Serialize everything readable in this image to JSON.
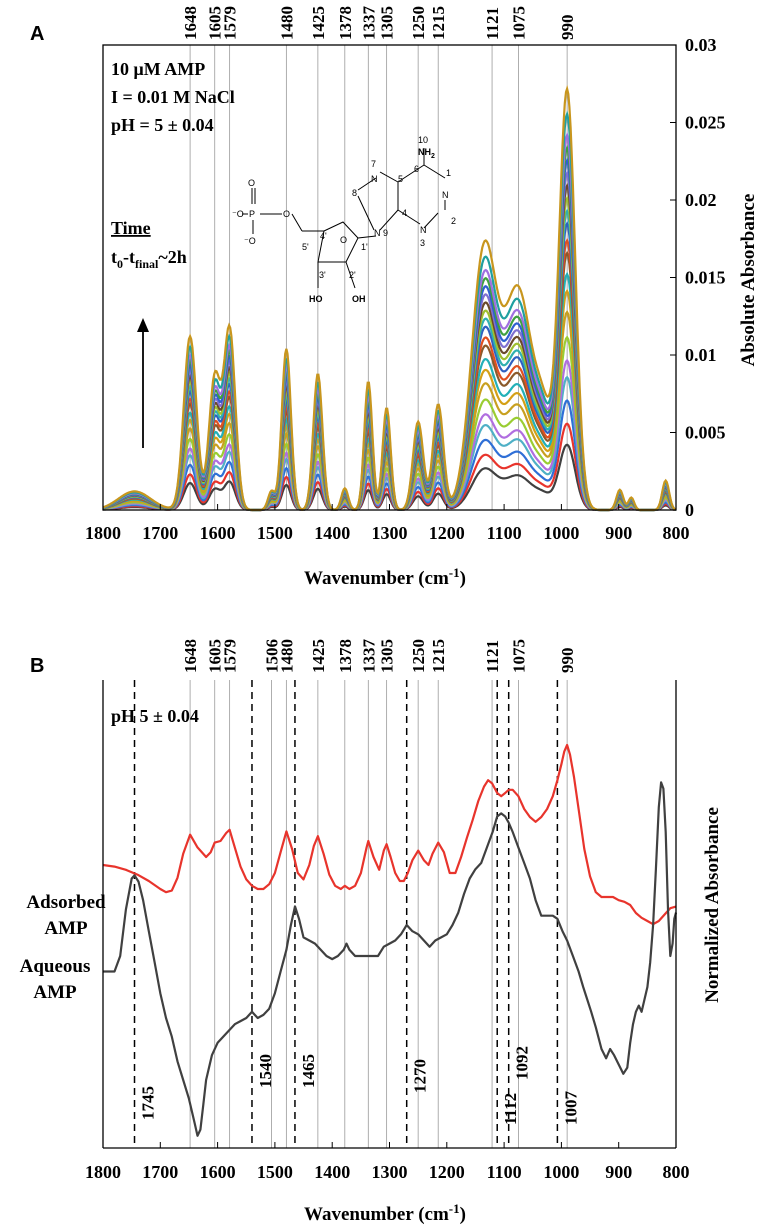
{
  "chart_data": [
    {
      "panel": "A",
      "type": "line",
      "xlabel": "Wavenumber (cm",
      "xlabel_sup": "-1",
      "xlabel_close": ")",
      "ylabel": "Absolute Absorbance",
      "xlim": [
        1800,
        800
      ],
      "ylim": [
        0,
        0.03
      ],
      "x_ticks": [
        1800,
        1700,
        1600,
        1500,
        1400,
        1300,
        1200,
        1100,
        1000,
        900,
        800
      ],
      "y_ticks": [
        0,
        0.005,
        0.01,
        0.015,
        0.02,
        0.025,
        0.03
      ],
      "y_tick_labels": [
        "0",
        "0.005",
        "0.01",
        "0.015",
        "0.02",
        "0.025",
        "0.03"
      ],
      "peak_markers": [
        {
          "x": 1648,
          "label": "1648"
        },
        {
          "x": 1605,
          "label": "1605"
        },
        {
          "x": 1579,
          "label": "1579"
        },
        {
          "x": 1480,
          "label": "1480"
        },
        {
          "x": 1425,
          "label": "1425"
        },
        {
          "x": 1378,
          "label": "1378"
        },
        {
          "x": 1337,
          "label": "1337"
        },
        {
          "x": 1305,
          "label": "1305"
        },
        {
          "x": 1250,
          "label": "1250"
        },
        {
          "x": 1215,
          "label": "1215"
        },
        {
          "x": 1121,
          "label": "1121"
        },
        {
          "x": 1075,
          "label": "1075"
        },
        {
          "x": 990,
          "label": "990"
        }
      ],
      "annotations": {
        "line1": "10 μM AMP",
        "line2": "I = 0.01 M NaCl",
        "line3": "pH = 5 ± 0.04",
        "time_label": "Time",
        "time_range_pre": "t",
        "time_range_sub0": "0",
        "time_range_mid": "-t",
        "time_range_sub1": "final",
        "time_range_post": "~2h"
      },
      "molecule_labels": {
        "o": "O",
        "om": "O",
        "p": "P",
        "n7": "N",
        "n1": "N",
        "n3": "N",
        "n9": "N",
        "nh2": "NH",
        "nh2_sub": "2",
        "ho": "HO",
        "oh": "OH",
        "num1": "1",
        "num2": "2",
        "num3": "3",
        "num4": "4",
        "num5": "5",
        "num6": "6",
        "num7": "7",
        "num8": "8",
        "num10": "10",
        "c5p": "5'",
        "c4p": "4'",
        "c3p": "3'",
        "c2p": "2'",
        "c1p": "1'"
      },
      "series_model": {
        "description": "Time series of spectra growing in intensity; each scaled from a common band shape",
        "scales": [
          0.155,
          0.205,
          0.26,
          0.315,
          0.355,
          0.41,
          0.47,
          0.52,
          0.56,
          0.61,
          0.64,
          0.68,
          0.71,
          0.74,
          0.77,
          0.8,
          0.83,
          0.86,
          0.89,
          0.94,
          1.0
        ],
        "colors": [
          "#404040",
          "#e8342c",
          "#2f6fd6",
          "#4fb0c6",
          "#b06ee0",
          "#9acd32",
          "#c8a020",
          "#d4a017",
          "#22b0b8",
          "#8b5a2b",
          "#e05020",
          "#3060c0",
          "#30b0b0",
          "#a0c030",
          "#6a4a2a",
          "#8070d0",
          "#2f5fd0",
          "#40a040",
          "#a070e0",
          "#20a0a0",
          "#c8961e"
        ],
        "bands": [
          {
            "center": 1745,
            "amp": 0.0012,
            "width": 28
          },
          {
            "center": 1648,
            "amp": 0.0112,
            "width": 11
          },
          {
            "center": 1605,
            "amp": 0.0085,
            "width": 10
          },
          {
            "center": 1579,
            "amp": 0.0116,
            "width": 10
          },
          {
            "center": 1506,
            "amp": 0.0012,
            "width": 6
          },
          {
            "center": 1480,
            "amp": 0.0104,
            "width": 8
          },
          {
            "center": 1425,
            "amp": 0.0088,
            "width": 8
          },
          {
            "center": 1378,
            "amp": 0.0014,
            "width": 6
          },
          {
            "center": 1337,
            "amp": 0.0083,
            "width": 7
          },
          {
            "center": 1305,
            "amp": 0.0066,
            "width": 7
          },
          {
            "center": 1250,
            "amp": 0.0057,
            "width": 9
          },
          {
            "center": 1215,
            "amp": 0.0068,
            "width": 9
          },
          {
            "center": 1135,
            "amp": 0.0165,
            "width": 22
          },
          {
            "center": 1075,
            "amp": 0.014,
            "width": 25
          },
          {
            "center": 1030,
            "amp": 0.0045,
            "width": 15
          },
          {
            "center": 990,
            "amp": 0.027,
            "width": 14
          },
          {
            "center": 898,
            "amp": 0.0013,
            "width": 6
          },
          {
            "center": 878,
            "amp": 0.0008,
            "width": 5
          },
          {
            "center": 818,
            "amp": 0.0019,
            "width": 6
          }
        ]
      }
    },
    {
      "panel": "B",
      "type": "line",
      "xlabel": "Wavenumber (cm",
      "xlabel_sup": "-1",
      "xlabel_close": ")",
      "ylabel": "Normalized Absorbance",
      "xlim": [
        1800,
        800
      ],
      "x_ticks": [
        1800,
        1700,
        1600,
        1500,
        1400,
        1300,
        1200,
        1100,
        1000,
        900,
        800
      ],
      "annotation": "pH 5 ± 0.04",
      "series_labels": {
        "adsorbed_1": "Adsorbed",
        "adsorbed_2": "AMP",
        "aqueous_1": "Aqueous",
        "aqueous_2": "AMP"
      },
      "solid_markers": [
        {
          "x": 1648,
          "label": "1648"
        },
        {
          "x": 1605,
          "label": "1605"
        },
        {
          "x": 1579,
          "label": "1579"
        },
        {
          "x": 1506,
          "label": "1506"
        },
        {
          "x": 1480,
          "label": "1480"
        },
        {
          "x": 1425,
          "label": "1425"
        },
        {
          "x": 1378,
          "label": "1378"
        },
        {
          "x": 1337,
          "label": "1337"
        },
        {
          "x": 1305,
          "label": "1305"
        },
        {
          "x": 1250,
          "label": "1250"
        },
        {
          "x": 1215,
          "label": "1215"
        },
        {
          "x": 1121,
          "label": "1121"
        },
        {
          "x": 1075,
          "label": "1075"
        },
        {
          "x": 990,
          "label": "990"
        }
      ],
      "dashed_markers": [
        {
          "x": 1745,
          "label": "1745"
        },
        {
          "x": 1540,
          "label": "1540"
        },
        {
          "x": 1465,
          "label": "1465"
        },
        {
          "x": 1270,
          "label": "1270"
        },
        {
          "x": 1112,
          "label": "1112"
        },
        {
          "x": 1092,
          "label": "1092"
        },
        {
          "x": 1007,
          "label": "1007"
        }
      ],
      "series": [
        {
          "name": "Adsorbed AMP",
          "color": "#e8342c",
          "x": [
            1800,
            1780,
            1760,
            1740,
            1720,
            1700,
            1690,
            1680,
            1670,
            1660,
            1648,
            1635,
            1620,
            1612,
            1605,
            1595,
            1585,
            1579,
            1570,
            1560,
            1550,
            1540,
            1530,
            1520,
            1510,
            1500,
            1490,
            1480,
            1470,
            1460,
            1450,
            1440,
            1432,
            1425,
            1415,
            1405,
            1395,
            1385,
            1378,
            1370,
            1360,
            1350,
            1340,
            1337,
            1328,
            1318,
            1310,
            1305,
            1298,
            1290,
            1282,
            1275,
            1268,
            1260,
            1250,
            1240,
            1232,
            1225,
            1215,
            1205,
            1195,
            1185,
            1175,
            1165,
            1155,
            1145,
            1135,
            1128,
            1121,
            1112,
            1105,
            1098,
            1092,
            1085,
            1075,
            1065,
            1055,
            1045,
            1035,
            1025,
            1015,
            1007,
            1000,
            995,
            990,
            985,
            978,
            970,
            960,
            950,
            940,
            930,
            920,
            910,
            900,
            890,
            880,
            870,
            860,
            850,
            840,
            830,
            820,
            810,
            800
          ],
          "y": [
            0.25,
            0.24,
            0.22,
            0.19,
            0.15,
            0.1,
            0.08,
            0.09,
            0.17,
            0.32,
            0.44,
            0.36,
            0.3,
            0.33,
            0.39,
            0.4,
            0.45,
            0.47,
            0.36,
            0.24,
            0.16,
            0.12,
            0.1,
            0.1,
            0.13,
            0.2,
            0.33,
            0.46,
            0.35,
            0.2,
            0.16,
            0.25,
            0.37,
            0.43,
            0.32,
            0.19,
            0.12,
            0.1,
            0.12,
            0.1,
            0.12,
            0.2,
            0.36,
            0.4,
            0.3,
            0.22,
            0.34,
            0.38,
            0.3,
            0.2,
            0.15,
            0.15,
            0.2,
            0.28,
            0.34,
            0.28,
            0.25,
            0.32,
            0.39,
            0.33,
            0.2,
            0.2,
            0.3,
            0.42,
            0.53,
            0.65,
            0.74,
            0.78,
            0.76,
            0.7,
            0.68,
            0.7,
            0.72,
            0.72,
            0.68,
            0.6,
            0.55,
            0.52,
            0.55,
            0.6,
            0.68,
            0.78,
            0.88,
            0.96,
            1.0,
            0.94,
            0.8,
            0.6,
            0.35,
            0.18,
            0.08,
            0.05,
            0.05,
            0.05,
            0.03,
            0.02,
            0.0,
            -0.05,
            -0.08,
            -0.1,
            -0.12,
            -0.1,
            -0.06,
            -0.02,
            -0.01
          ]
        },
        {
          "name": "Aqueous AMP",
          "color": "#404040",
          "x": [
            1800,
            1790,
            1780,
            1770,
            1760,
            1750,
            1745,
            1738,
            1730,
            1720,
            1710,
            1700,
            1690,
            1680,
            1670,
            1660,
            1650,
            1640,
            1635,
            1630,
            1625,
            1620,
            1610,
            1600,
            1590,
            1580,
            1570,
            1560,
            1550,
            1540,
            1530,
            1520,
            1510,
            1500,
            1490,
            1480,
            1472,
            1465,
            1458,
            1450,
            1440,
            1430,
            1420,
            1410,
            1400,
            1390,
            1380,
            1375,
            1370,
            1360,
            1350,
            1340,
            1330,
            1320,
            1310,
            1300,
            1290,
            1280,
            1270,
            1260,
            1250,
            1240,
            1230,
            1220,
            1210,
            1200,
            1190,
            1180,
            1170,
            1160,
            1150,
            1140,
            1130,
            1120,
            1112,
            1105,
            1098,
            1092,
            1085,
            1075,
            1065,
            1055,
            1045,
            1035,
            1025,
            1015,
            1007,
            998,
            990,
            980,
            970,
            962,
            955,
            948,
            940,
            930,
            922,
            915,
            908,
            900,
            892,
            885,
            880,
            875,
            870,
            865,
            860,
            855,
            850,
            845,
            840,
            835,
            830,
            826,
            822,
            818,
            814,
            810,
            806,
            803,
            800
          ],
          "y": [
            -0.15,
            -0.15,
            -0.15,
            -0.1,
            0.05,
            0.15,
            0.16,
            0.14,
            0.08,
            -0.02,
            -0.12,
            -0.22,
            -0.3,
            -0.36,
            -0.44,
            -0.5,
            -0.56,
            -0.64,
            -0.68,
            -0.66,
            -0.58,
            -0.5,
            -0.42,
            -0.38,
            -0.36,
            -0.34,
            -0.32,
            -0.31,
            -0.3,
            -0.28,
            -0.3,
            -0.29,
            -0.27,
            -0.22,
            -0.15,
            -0.08,
            0.0,
            0.06,
            0.02,
            -0.04,
            -0.05,
            -0.06,
            -0.08,
            -0.1,
            -0.11,
            -0.1,
            -0.08,
            -0.06,
            -0.08,
            -0.1,
            -0.1,
            -0.1,
            -0.1,
            -0.1,
            -0.07,
            -0.06,
            -0.05,
            -0.03,
            0.0,
            -0.02,
            -0.03,
            -0.05,
            -0.07,
            -0.05,
            -0.04,
            -0.03,
            0.0,
            0.04,
            0.1,
            0.15,
            0.18,
            0.2,
            0.25,
            0.3,
            0.35,
            0.36,
            0.35,
            0.33,
            0.3,
            0.25,
            0.2,
            0.15,
            0.08,
            0.03,
            0.03,
            0.03,
            0.02,
            -0.02,
            -0.05,
            -0.1,
            -0.15,
            -0.2,
            -0.24,
            -0.28,
            -0.33,
            -0.4,
            -0.43,
            -0.4,
            -0.42,
            -0.45,
            -0.48,
            -0.46,
            -0.38,
            -0.32,
            -0.28,
            -0.26,
            -0.28,
            -0.24,
            -0.2,
            -0.12,
            0.0,
            0.18,
            0.38,
            0.46,
            0.44,
            0.3,
            0.05,
            -0.1,
            -0.06,
            0.02,
            0.04
          ]
        }
      ]
    }
  ]
}
